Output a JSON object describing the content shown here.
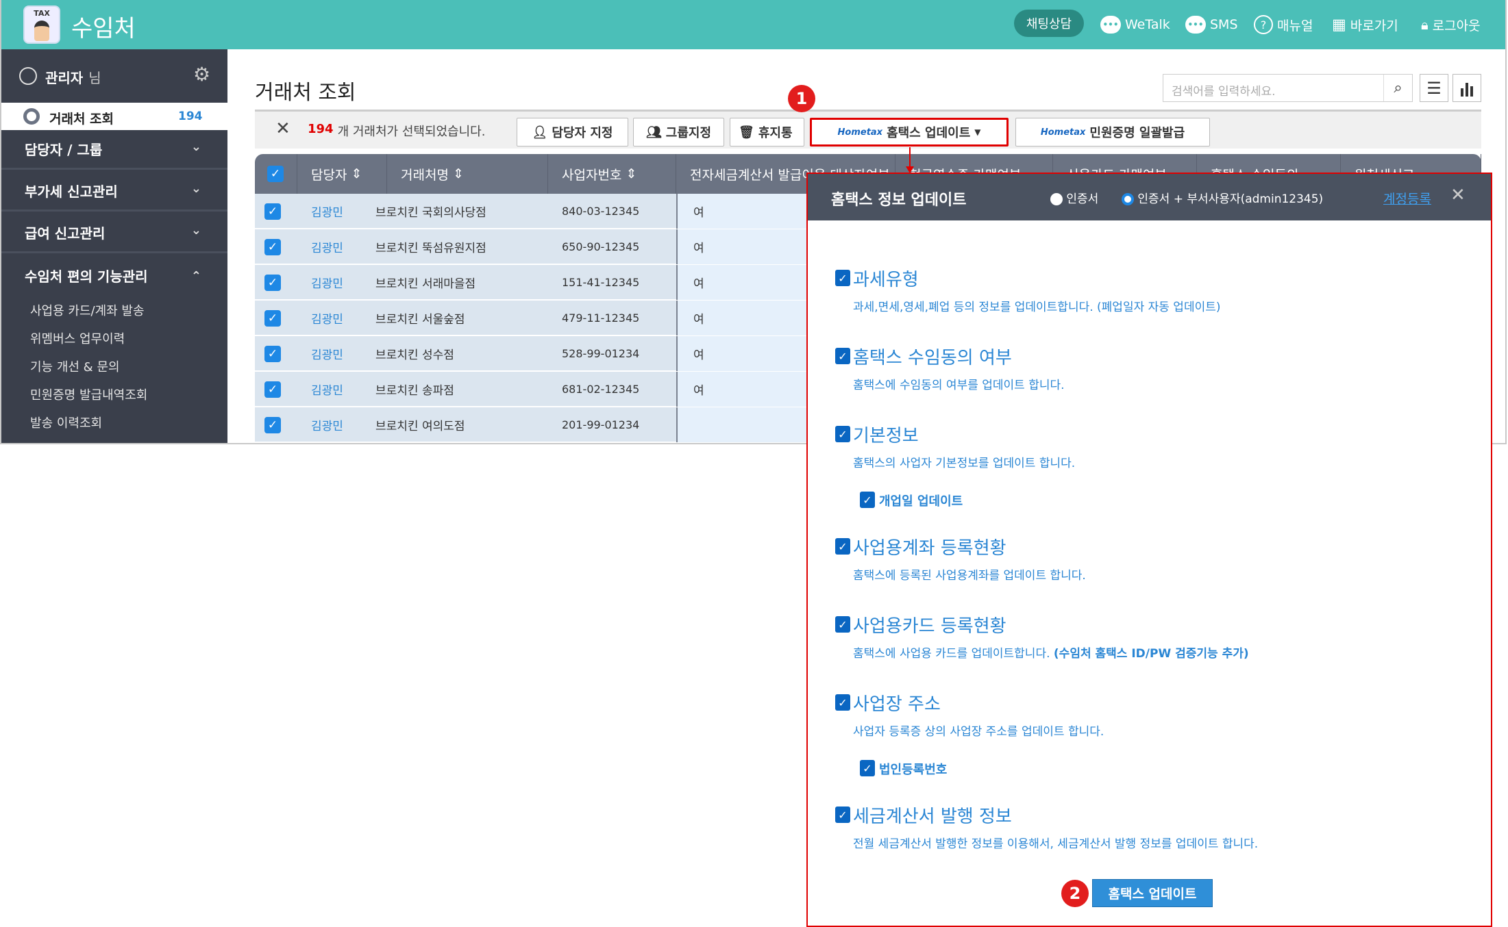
{
  "app": {
    "logo_text": "TAX",
    "title": "수임처"
  },
  "topnav": {
    "chat": "채팅상담",
    "wetalk": "WeTalk",
    "sms": "SMS",
    "manual": "매뉴얼",
    "shortcut": "바로가기",
    "logout": "로그아웃"
  },
  "sidebar": {
    "user": "관리자",
    "user_suffix": "님",
    "selected": {
      "label": "거래처 조회",
      "count": "194"
    },
    "menus": [
      {
        "label": "담당자 / 그룹",
        "expanded": false
      },
      {
        "label": "부가세 신고관리",
        "expanded": false
      },
      {
        "label": "급여 신고관리",
        "expanded": false
      },
      {
        "label": "수임처 편의 기능관리",
        "expanded": true
      }
    ],
    "subitems": [
      "사업용 카드/계좌 발송",
      "위멤버스 업무이력",
      "기능 개선 & 문의",
      "민원증명 발급내역조회",
      "발송 이력조회"
    ]
  },
  "main": {
    "title": "거래처 조회",
    "search_placeholder": "검색어를 입력하세요.",
    "selection": {
      "count": "194",
      "text": "개 거래처가 선택되었습니다."
    },
    "buttons": {
      "assign": "담당자 지정",
      "group": "그룹지정",
      "trash": "휴지통",
      "hometax_logo": "Hometax",
      "hometax_update": "홈택스 업데이트",
      "certificate": "민원증명 일괄발급"
    },
    "columns": [
      "담당자",
      "거래처명",
      "사업자번호",
      "전자세금계산서 발급이용 대상자여부",
      "현금영수증 가맹여부",
      "신용카드 가맹여부",
      "홈택스 수임동의",
      "원천세신고"
    ],
    "rows": [
      {
        "manager": "김광민",
        "name": "브로치킨 국회의사당점",
        "bizno": "840-03-12345",
        "einvoice": "여"
      },
      {
        "manager": "김광민",
        "name": "브로치킨 뚝섬유원지점",
        "bizno": "650-90-12345",
        "einvoice": "여"
      },
      {
        "manager": "김광민",
        "name": "브로치킨 서래마을점",
        "bizno": "151-41-12345",
        "einvoice": "여"
      },
      {
        "manager": "김광민",
        "name": "브로치킨 서울숲점",
        "bizno": "479-11-12345",
        "einvoice": "여"
      },
      {
        "manager": "김광민",
        "name": "브로치킨 성수점",
        "bizno": "528-99-01234",
        "einvoice": "여"
      },
      {
        "manager": "김광민",
        "name": "브로치킨 송파점",
        "bizno": "681-02-12345",
        "einvoice": "여"
      },
      {
        "manager": "김광민",
        "name": "브로치킨 여의도점",
        "bizno": "201-99-01234",
        "einvoice": ""
      }
    ]
  },
  "annotations": {
    "step1": "1",
    "step2": "2"
  },
  "panel": {
    "title": "홈택스 정보 업데이트",
    "radio1": "인증서",
    "radio2": "인증서 + 부서사용자(admin12345)",
    "selected_radio": "radio2",
    "register_link": "계정등록",
    "items": [
      {
        "title": "과세유형",
        "desc": "과세,면세,영세,폐업 등의 정보를 업데이트합니다. (폐업일자 자동 업데이트)",
        "checked": true
      },
      {
        "title": "홈택스 수임동의 여부",
        "desc": "홈택스에 수임동의 여부를 업데이트 합니다.",
        "checked": true
      },
      {
        "title": "기본정보",
        "desc": "홈택스의 사업자 기본정보를 업데이트 합니다.",
        "checked": true,
        "sub": "개업일 업데이트"
      },
      {
        "title": "사업용계좌 등록현황",
        "desc": "홈택스에 등록된 사업용계좌를 업데이트 합니다.",
        "checked": true
      },
      {
        "title": "사업용카드 등록현황",
        "desc": "홈택스에 사업용 카드를 업데이트합니다.",
        "desc_bold": "(수임처 홈택스 ID/PW 검증기능 추가)",
        "checked": true
      },
      {
        "title": "사업장 주소",
        "desc": "사업자 등록증 상의 사업장 주소를 업데이트 합니다.",
        "checked": true,
        "sub": "법인등록번호"
      },
      {
        "title": "세금계산서 발행 정보",
        "desc": "전월 세금계산서 발행한 정보를 이용해서, 세금계산서 발행 정보를 업데이트 합니다.",
        "checked": true
      }
    ],
    "submit": "홈택스 업데이트"
  },
  "colors": {
    "header": "#4bbfb8",
    "sidebar": "#3a3f4b",
    "accent": "#2a86d4",
    "highlight": "#e00000"
  }
}
